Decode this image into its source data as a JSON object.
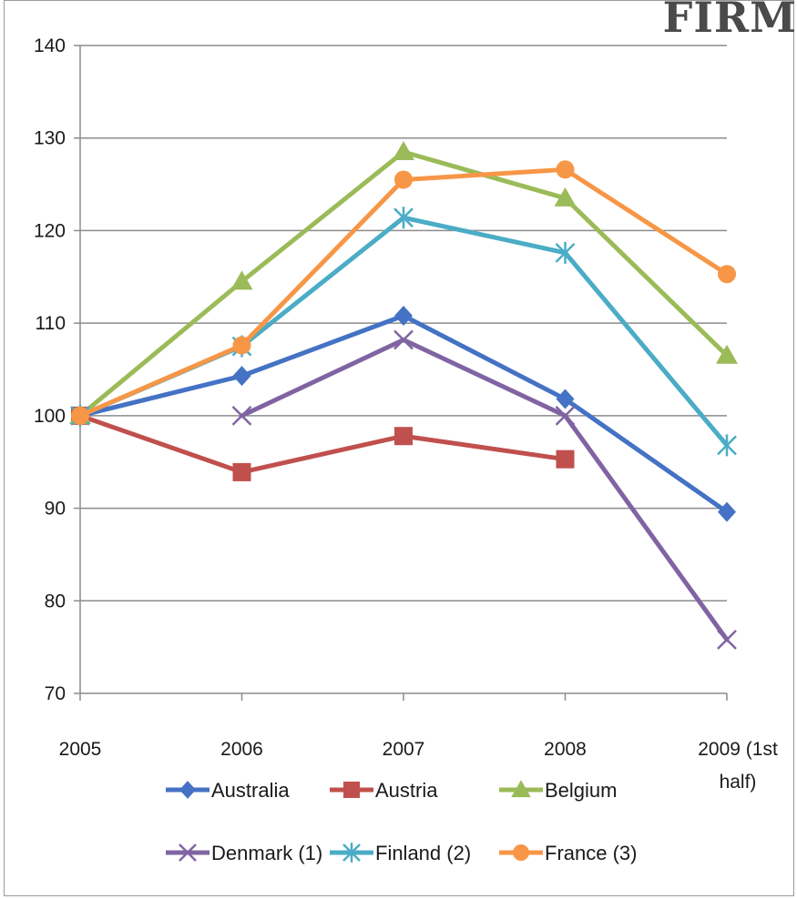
{
  "corner_title": "FIRM",
  "chart_data": {
    "type": "line",
    "categories": [
      "2005",
      "2006",
      "2007",
      "2008",
      "2009 (1st half)"
    ],
    "category_lines": [
      [
        "2005"
      ],
      [
        "2006"
      ],
      [
        "2007"
      ],
      [
        "2008"
      ],
      [
        "2009 (1st",
        "half)"
      ]
    ],
    "ylim": [
      70,
      140
    ],
    "yticks": [
      70,
      80,
      90,
      100,
      110,
      120,
      130,
      140
    ],
    "grid": true,
    "legend_position": "bottom",
    "series": [
      {
        "name": "Australia",
        "color": "#4472C4",
        "marker": "diamond",
        "values": [
          100,
          104.3,
          110.8,
          101.8,
          89.6
        ]
      },
      {
        "name": "Austria",
        "color": "#C0504D",
        "marker": "square",
        "values": [
          100,
          93.9,
          97.8,
          95.3,
          null
        ]
      },
      {
        "name": "Belgium",
        "color": "#9BBB59",
        "marker": "triangle",
        "values": [
          100,
          114.5,
          128.5,
          123.5,
          106.5
        ]
      },
      {
        "name": "Denmark (1)",
        "color": "#8064A2",
        "marker": "x",
        "values": [
          null,
          100,
          108.2,
          100,
          75.8
        ]
      },
      {
        "name": "Finland (2)",
        "color": "#4BACC6",
        "marker": "star",
        "values": [
          100,
          107.5,
          121.4,
          117.6,
          96.8
        ]
      },
      {
        "name": "France (3)",
        "color": "#F79646",
        "marker": "circle",
        "values": [
          100,
          107.6,
          125.5,
          126.6,
          115.3
        ]
      }
    ]
  }
}
